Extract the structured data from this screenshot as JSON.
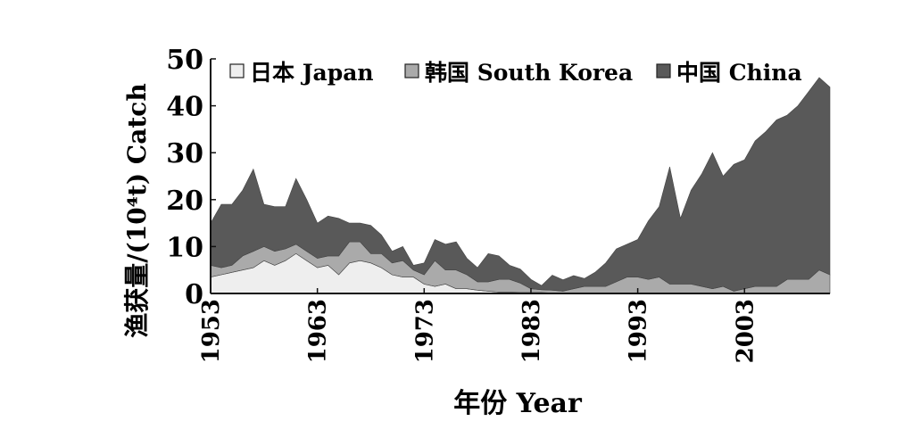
{
  "chart_data": {
    "type": "area",
    "stacked": true,
    "xlabel": "年份 Year",
    "ylabel": "渔获量/(10⁴t) Catch",
    "xlim": [
      1953,
      2011
    ],
    "ylim": [
      0,
      50
    ],
    "x_ticks": [
      1953,
      1963,
      1973,
      1983,
      1993,
      2003
    ],
    "y_ticks": [
      0,
      10,
      20,
      30,
      40,
      50
    ],
    "grid": false,
    "legend_position": "top",
    "x": [
      1953,
      1954,
      1955,
      1956,
      1957,
      1958,
      1959,
      1960,
      1961,
      1962,
      1963,
      1964,
      1965,
      1966,
      1967,
      1968,
      1969,
      1970,
      1971,
      1972,
      1973,
      1974,
      1975,
      1976,
      1977,
      1978,
      1979,
      1980,
      1981,
      1982,
      1983,
      1984,
      1985,
      1986,
      1987,
      1988,
      1989,
      1990,
      1991,
      1992,
      1993,
      1994,
      1995,
      1996,
      1997,
      1998,
      1999,
      2000,
      2001,
      2002,
      2003,
      2004,
      2005,
      2006,
      2007,
      2008,
      2009,
      2010,
      2011
    ],
    "series": [
      {
        "name": "日本 Japan",
        "color": "#eeeeee",
        "values": [
          3.5,
          4,
          4.5,
          5,
          5.5,
          7,
          6,
          7,
          8.5,
          7,
          5.5,
          6,
          4,
          6.5,
          7,
          6.5,
          5.5,
          4,
          3.5,
          3.5,
          2,
          1.5,
          2,
          1,
          1,
          0.7,
          0.5,
          0.3,
          0.3,
          0.2,
          0.2,
          0.2,
          0.1,
          0.1,
          0.1,
          0.1,
          0.1,
          0.1,
          0.1,
          0.1,
          0.1,
          0.1,
          0.1,
          0.1,
          0.1,
          0.1,
          0.1,
          0.1,
          0.1,
          0.1,
          0.1,
          0.1,
          0.1,
          0.1,
          0.1,
          0.1,
          0.1,
          0.1,
          0.1
        ]
      },
      {
        "name": "韩国 South Korea",
        "color": "#aaaaaa",
        "values": [
          2.5,
          1.5,
          1.5,
          3,
          3.5,
          3,
          3,
          2.5,
          2,
          2,
          2,
          2,
          4,
          4.5,
          4,
          2,
          3,
          2.5,
          3.5,
          1.5,
          2,
          5.5,
          3,
          4,
          3,
          1.8,
          2,
          2.7,
          2.7,
          2,
          0.8,
          0.6,
          0.6,
          0.4,
          0.9,
          1.4,
          1.4,
          1.4,
          2.4,
          3.4,
          3.4,
          2.9,
          3.4,
          1.9,
          1.9,
          1.9,
          1.4,
          0.9,
          1.4,
          0.4,
          0.9,
          1.4,
          1.4,
          1.4,
          2.9,
          2.9,
          2.9,
          4.9,
          3.9
        ]
      },
      {
        "name": "中国 China",
        "color": "#595959",
        "values": [
          9,
          13.5,
          13,
          14,
          17.5,
          9,
          9.5,
          9,
          14,
          11,
          7.5,
          8.5,
          8,
          4,
          4,
          6,
          4,
          2.5,
          3,
          1,
          2.5,
          4.5,
          5.5,
          6,
          3.5,
          3,
          6,
          5,
          3,
          3,
          2,
          0.9,
          3.2,
          2.4,
          2.8,
          1.7,
          3,
          5,
          7,
          7,
          8,
          12.5,
          15,
          25,
          14,
          20,
          24,
          29,
          23.5,
          27,
          27.5,
          31,
          33,
          35.5,
          35,
          37,
          40,
          41,
          40
        ]
      }
    ]
  }
}
